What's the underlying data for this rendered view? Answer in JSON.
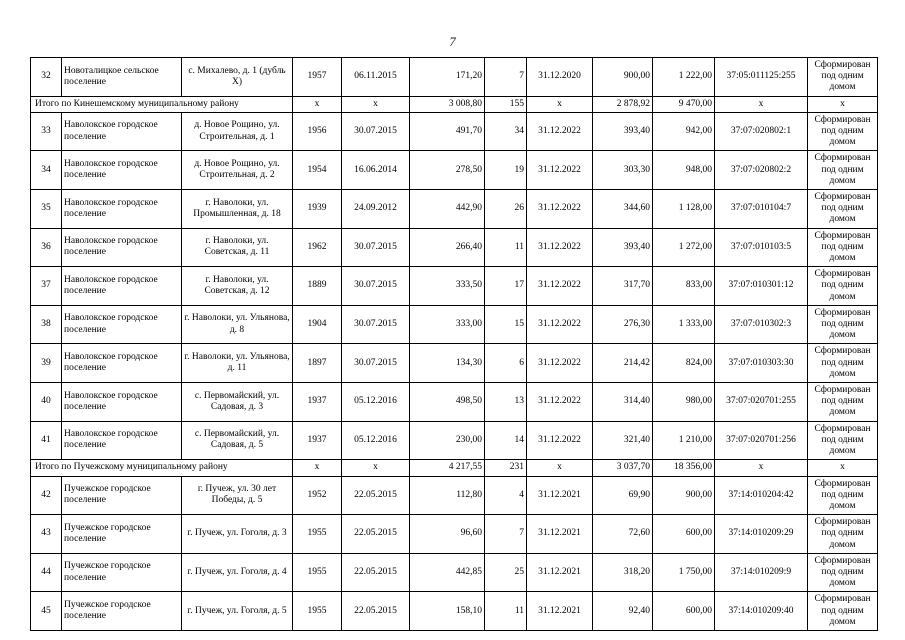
{
  "page": {
    "number": "7"
  },
  "table": {
    "status_color": "#000000",
    "border_color": "#000000",
    "rows": [
      {
        "type": "data",
        "num": "32",
        "settlement": "Новоталицкое сельское поселение",
        "address": "с. Михалево, д. 1 (дубль Х)",
        "year": "1957",
        "reg_date": "06.11.2015",
        "area": "171,20",
        "apartments": "7",
        "deadline": "31.12.2020",
        "v1": "900,00",
        "v2": "1 222,00",
        "cadastral": "37:05:011125:255",
        "status": "Сформирован под одним домом"
      },
      {
        "type": "subtotal",
        "label": "Итого по Кинешемскому муниципальному району",
        "year": "х",
        "reg_date": "х",
        "area": "3 008,80",
        "apartments": "155",
        "deadline": "х",
        "v1": "2 878,92",
        "v2": "9 470,00",
        "cadastral": "х",
        "status": "х"
      },
      {
        "type": "data",
        "num": "33",
        "settlement": "Наволокское городское поселение",
        "address": "д. Новое Рощино, ул. Строительная, д. 1",
        "year": "1956",
        "reg_date": "30.07.2015",
        "area": "491,70",
        "apartments": "34",
        "deadline": "31.12.2022",
        "v1": "393,40",
        "v2": "942,00",
        "cadastral": "37:07:020802:1",
        "status": "Сформирован под одним домом"
      },
      {
        "type": "data",
        "num": "34",
        "settlement": "Наволокское городское поселение",
        "address": "д. Новое Рощино, ул. Строительная, д. 2",
        "year": "1954",
        "reg_date": "16.06.2014",
        "area": "278,50",
        "apartments": "19",
        "deadline": "31.12.2022",
        "v1": "303,30",
        "v2": "948,00",
        "cadastral": "37:07:020802:2",
        "status": "Сформирован под одним домом"
      },
      {
        "type": "data",
        "num": "35",
        "settlement": "Наволокское городское поселение",
        "address": "г. Наволоки, ул. Промышленная, д. 18",
        "year": "1939",
        "reg_date": "24.09.2012",
        "area": "442,90",
        "apartments": "26",
        "deadline": "31.12.2022",
        "v1": "344,60",
        "v2": "1 128,00",
        "cadastral": "37:07:010104:7",
        "status": "Сформирован под одним домом"
      },
      {
        "type": "data",
        "num": "36",
        "settlement": "Наволокское городское поселение",
        "address": "г. Наволоки, ул. Советская, д. 11",
        "year": "1962",
        "reg_date": "30.07.2015",
        "area": "266,40",
        "apartments": "11",
        "deadline": "31.12.2022",
        "v1": "393,40",
        "v2": "1 272,00",
        "cadastral": "37:07:010103:5",
        "status": "Сформирован под одним домом"
      },
      {
        "type": "data",
        "num": "37",
        "settlement": "Наволокское городское поселение",
        "address": "г. Наволоки, ул. Советская, д. 12",
        "year": "1889",
        "reg_date": "30.07.2015",
        "area": "333,50",
        "apartments": "17",
        "deadline": "31.12.2022",
        "v1": "317,70",
        "v2": "833,00",
        "cadastral": "37:07:010301:12",
        "status": "Сформирован под одним домом"
      },
      {
        "type": "data",
        "num": "38",
        "settlement": "Наволокское городское поселение",
        "address": "г. Наволоки, ул. Ульянова, д. 8",
        "year": "1904",
        "reg_date": "30.07.2015",
        "area": "333,00",
        "apartments": "15",
        "deadline": "31.12.2022",
        "v1": "276,30",
        "v2": "1 333,00",
        "cadastral": "37:07:010302:3",
        "status": "Сформирован под одним домом"
      },
      {
        "type": "data",
        "num": "39",
        "settlement": "Наволокское городское поселение",
        "address": "г. Наволоки, ул. Ульянова, д. 11",
        "year": "1897",
        "reg_date": "30.07.2015",
        "area": "134,30",
        "apartments": "6",
        "deadline": "31.12.2022",
        "v1": "214,42",
        "v2": "824,00",
        "cadastral": "37:07:010303:30",
        "status": "Сформирован под одним домом"
      },
      {
        "type": "data",
        "num": "40",
        "settlement": "Наволокское городское поселение",
        "address": "с. Первомайский, ул. Садовая, д. 3",
        "year": "1937",
        "reg_date": "05.12.2016",
        "area": "498,50",
        "apartments": "13",
        "deadline": "31.12.2022",
        "v1": "314,40",
        "v2": "980,00",
        "cadastral": "37:07:020701:255",
        "status": "Сформирован под одним домом"
      },
      {
        "type": "data",
        "num": "41",
        "settlement": "Наволокское городское поселение",
        "address": "с. Первомайский, ул. Садовая, д. 5",
        "year": "1937",
        "reg_date": "05.12.2016",
        "area": "230,00",
        "apartments": "14",
        "deadline": "31.12.2022",
        "v1": "321,40",
        "v2": "1 210,00",
        "cadastral": "37:07:020701:256",
        "status": "Сформирован под одним домом"
      },
      {
        "type": "subtotal",
        "label": "Итого по Пучежскому муниципальному району",
        "year": "х",
        "reg_date": "х",
        "area": "4 217,55",
        "apartments": "231",
        "deadline": "х",
        "v1": "3 037,70",
        "v2": "18 356,00",
        "cadastral": "х",
        "status": "х"
      },
      {
        "type": "data",
        "num": "42",
        "settlement": "Пучежское городское поселение",
        "address": "г. Пучеж, ул. 30 лет Победы, д. 5",
        "year": "1952",
        "reg_date": "22.05.2015",
        "area": "112,80",
        "apartments": "4",
        "deadline": "31.12.2021",
        "v1": "69,90",
        "v2": "900,00",
        "cadastral": "37:14:010204:42",
        "status": "Сформирован под одним домом"
      },
      {
        "type": "data",
        "num": "43",
        "settlement": "Пучежское городское поселение",
        "address": "г. Пучеж, ул. Гоголя, д. 3",
        "year": "1955",
        "reg_date": "22.05.2015",
        "area": "96,60",
        "apartments": "7",
        "deadline": "31.12.2021",
        "v1": "72,60",
        "v2": "600,00",
        "cadastral": "37:14:010209:29",
        "status": "Сформирован под одним домом"
      },
      {
        "type": "data",
        "num": "44",
        "settlement": "Пучежское городское поселение",
        "address": "г. Пучеж, ул. Гоголя, д. 4",
        "year": "1955",
        "reg_date": "22.05.2015",
        "area": "442,85",
        "apartments": "25",
        "deadline": "31.12.2021",
        "v1": "318,20",
        "v2": "1 750,00",
        "cadastral": "37:14:010209:9",
        "status": "Сформирован под одним домом"
      },
      {
        "type": "data",
        "num": "45",
        "settlement": "Пучежское городское поселение",
        "address": "г. Пучеж, ул. Гоголя, д. 5",
        "year": "1955",
        "reg_date": "22.05.2015",
        "area": "158,10",
        "apartments": "11",
        "deadline": "31.12.2021",
        "v1": "92,40",
        "v2": "600,00",
        "cadastral": "37:14:010209:40",
        "status": "Сформирован под одним домом"
      }
    ]
  }
}
